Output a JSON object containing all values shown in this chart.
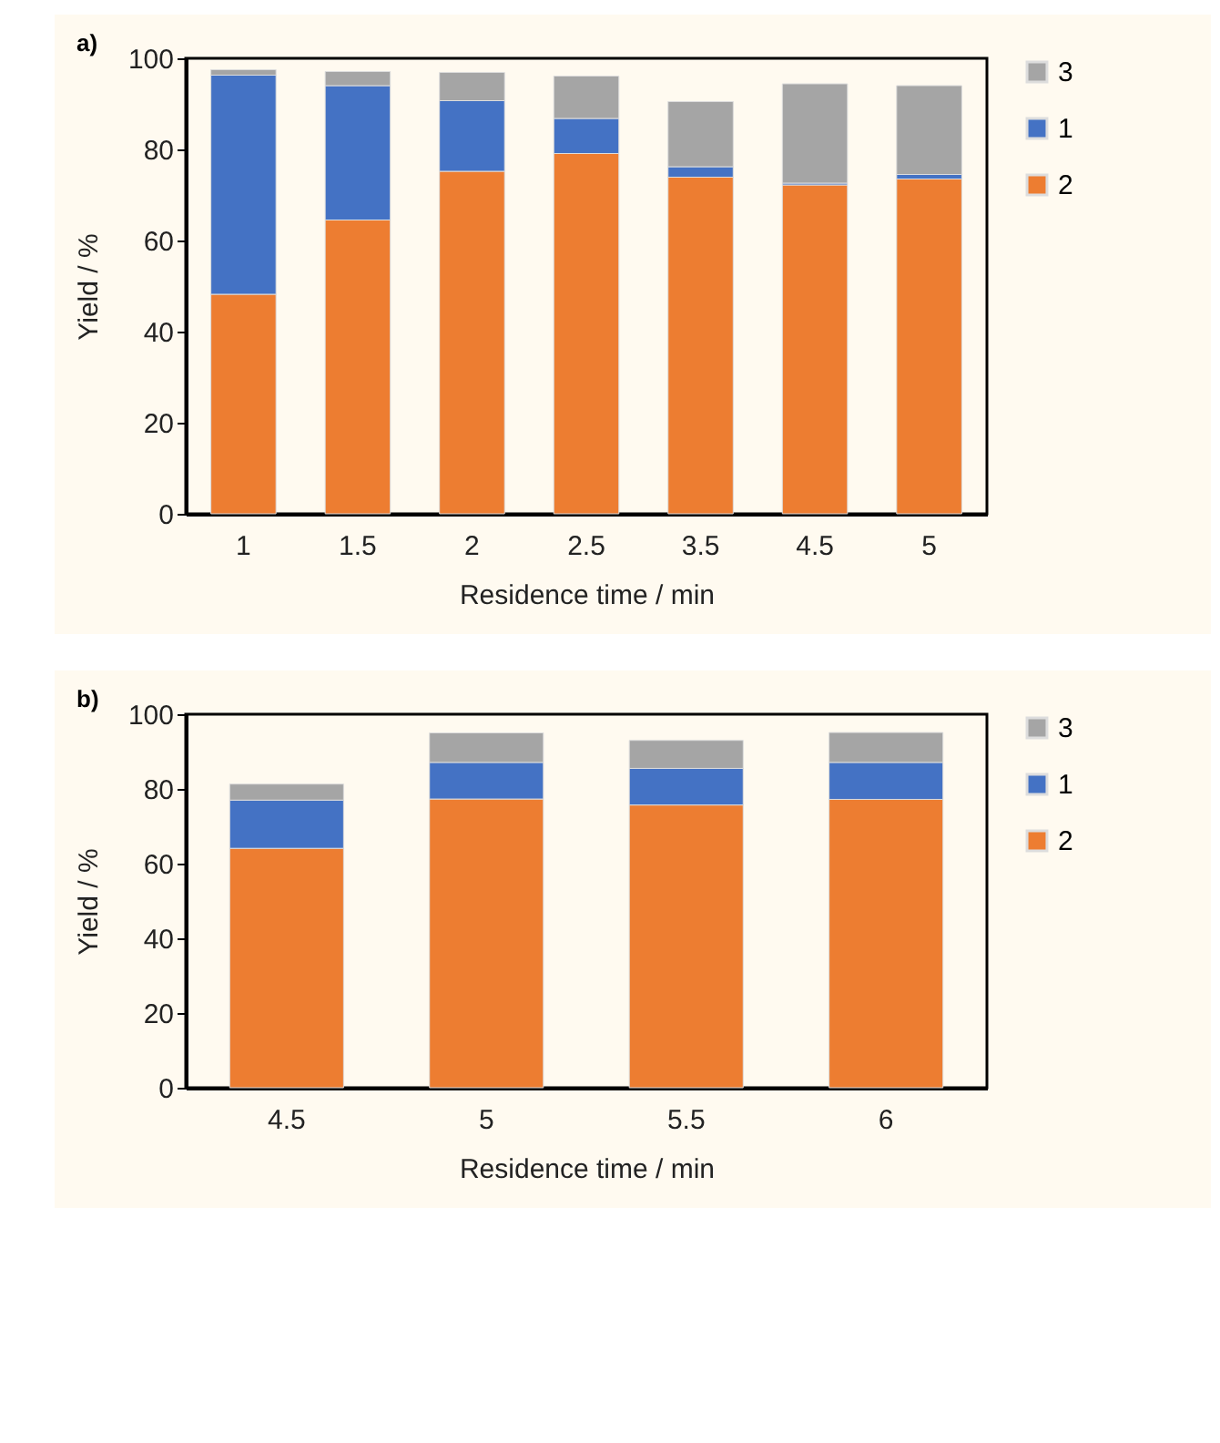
{
  "chart_data": [
    {
      "type": "bar",
      "title": "a)",
      "xlabel": "Residence time / min",
      "ylabel": "Yield / %",
      "categories": [
        "1",
        "1.5",
        "2",
        "2.5",
        "3.5",
        "4.5",
        "5"
      ],
      "stacked": true,
      "ylim": [
        0,
        100
      ],
      "yticks": [
        0,
        20,
        40,
        60,
        80,
        100
      ],
      "legend": "right",
      "grid": false,
      "series": [
        {
          "name": "2",
          "color": "#ed7d31",
          "values": [
            48.2,
            64.5,
            75.2,
            79.1,
            73.9,
            72.2,
            73.5
          ]
        },
        {
          "name": "1",
          "color": "#4472c4",
          "values": [
            48.1,
            29.5,
            15.5,
            7.7,
            2.3,
            0.4,
            1
          ]
        },
        {
          "name": "3",
          "color": "#a5a5a5",
          "values": [
            1.2,
            3.1,
            6.2,
            9.3,
            14.3,
            21.8,
            19.5
          ]
        }
      ]
    },
    {
      "type": "bar",
      "title": "b)",
      "xlabel": "Residence time / min",
      "ylabel": "Yield / %",
      "categories": [
        "4.5",
        "5",
        "5.5",
        "6"
      ],
      "stacked": true,
      "ylim": [
        0,
        100
      ],
      "yticks": [
        0,
        20,
        40,
        60,
        80,
        100
      ],
      "legend": "right",
      "grid": false,
      "series": [
        {
          "name": "2",
          "color": "#ed7d31",
          "values": [
            64.1,
            77.3,
            75.7,
            77.2
          ]
        },
        {
          "name": "1",
          "color": "#4472c4",
          "values": [
            12.9,
            9.8,
            9.8,
            9.9
          ]
        },
        {
          "name": "3",
          "color": "#a5a5a5",
          "values": [
            4.3,
            7.9,
            7.5,
            8
          ]
        }
      ]
    }
  ]
}
